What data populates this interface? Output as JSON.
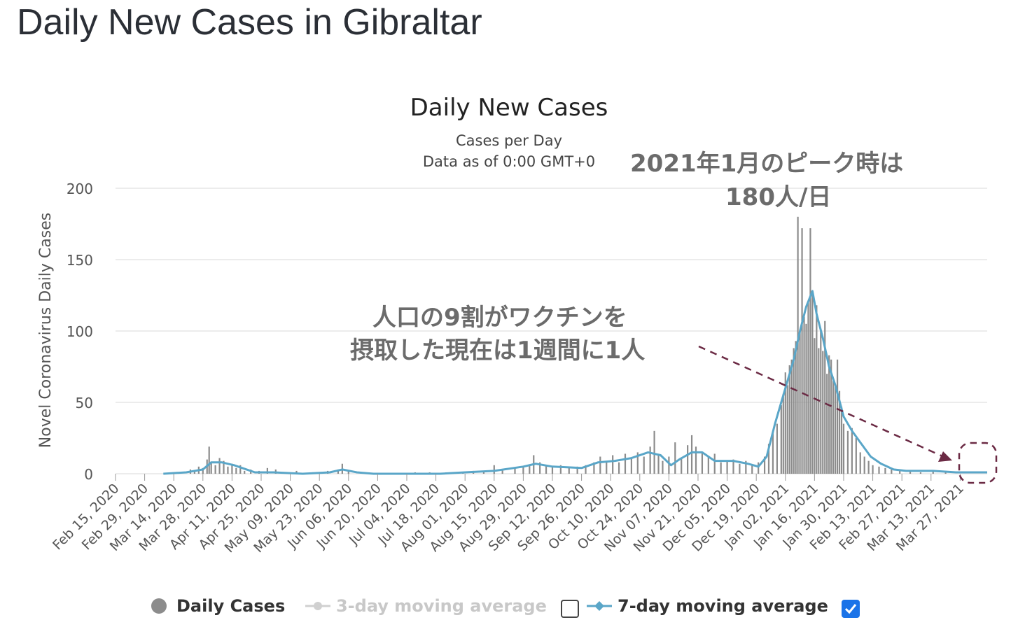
{
  "page_title": "Daily New Cases in Gibraltar",
  "legend": {
    "daily": "Daily Cases",
    "ma3": "3-day moving average",
    "ma7": "7-day moving average"
  },
  "annotations": {
    "peak_line1": "2021年1月のピーク時は",
    "peak_line2": "180人/日",
    "now_line1": "人口の9割がワクチンを",
    "now_line2": "摂取した現在は1週間に1人"
  },
  "colors": {
    "bars": "#8c8c8c",
    "ma7": "#5aa6c8",
    "arrow": "#6b2a44",
    "grid": "#e6e6e6"
  },
  "chart_data": {
    "type": "bar",
    "title": "Daily New Cases",
    "subtitle_line1": "Cases per Day",
    "subtitle_line2": "Data as of 0:00 GMT+0",
    "ylabel": "Novel Coronavirus Daily Cases",
    "ylim": [
      0,
      200
    ],
    "yticks": [
      "0",
      "50",
      "100",
      "150",
      "200"
    ],
    "x_start": "2020-02-15",
    "x_end": "2021-04-09",
    "xtick_labels": [
      "Feb 15, 2020",
      "Feb 29, 2020",
      "Mar 14, 2020",
      "Mar 28, 2020",
      "Apr 11, 2020",
      "Apr 25, 2020",
      "May 09, 2020",
      "May 23, 2020",
      "Jun 06, 2020",
      "Jun 20, 2020",
      "Jul 04, 2020",
      "Jul 18, 2020",
      "Aug 01, 2020",
      "Aug 15, 2020",
      "Aug 29, 2020",
      "Sep 12, 2020",
      "Sep 26, 2020",
      "Oct 10, 2020",
      "Oct 24, 2020",
      "Nov 07, 2020",
      "Nov 21, 2020",
      "Dec 05, 2020",
      "Dec 19, 2020",
      "Jan 02, 2021",
      "Jan 16, 2021",
      "Jan 30, 2021",
      "Feb 13, 2021",
      "Feb 27, 2021",
      "Mar 13, 2021",
      "Mar 27, 2021"
    ],
    "series": [
      {
        "name": "Daily Cases",
        "points": [
          [
            "2020-03-22",
            3
          ],
          [
            "2020-03-24",
            2
          ],
          [
            "2020-03-26",
            5
          ],
          [
            "2020-03-28",
            4
          ],
          [
            "2020-03-30",
            10
          ],
          [
            "2020-03-31",
            19
          ],
          [
            "2020-04-01",
            8
          ],
          [
            "2020-04-03",
            6
          ],
          [
            "2020-04-05",
            11
          ],
          [
            "2020-04-07",
            9
          ],
          [
            "2020-04-09",
            5
          ],
          [
            "2020-04-11",
            7
          ],
          [
            "2020-04-13",
            4
          ],
          [
            "2020-04-15",
            6
          ],
          [
            "2020-04-17",
            2
          ],
          [
            "2020-04-20",
            3
          ],
          [
            "2020-04-24",
            2
          ],
          [
            "2020-04-28",
            4
          ],
          [
            "2020-05-02",
            3
          ],
          [
            "2020-05-06",
            1
          ],
          [
            "2020-05-12",
            2
          ],
          [
            "2020-05-20",
            1
          ],
          [
            "2020-05-27",
            2
          ],
          [
            "2020-06-01",
            3
          ],
          [
            "2020-06-03",
            7
          ],
          [
            "2020-06-06",
            2
          ],
          [
            "2020-06-12",
            1
          ],
          [
            "2020-07-08",
            1
          ],
          [
            "2020-07-15",
            1
          ],
          [
            "2020-07-23",
            1
          ],
          [
            "2020-07-31",
            1
          ],
          [
            "2020-08-05",
            2
          ],
          [
            "2020-08-10",
            2
          ],
          [
            "2020-08-15",
            6
          ],
          [
            "2020-08-19",
            3
          ],
          [
            "2020-08-25",
            4
          ],
          [
            "2020-08-29",
            5
          ],
          [
            "2020-09-01",
            6
          ],
          [
            "2020-09-03",
            13
          ],
          [
            "2020-09-06",
            8
          ],
          [
            "2020-09-09",
            6
          ],
          [
            "2020-09-12",
            5
          ],
          [
            "2020-09-16",
            6
          ],
          [
            "2020-09-20",
            4
          ],
          [
            "2020-09-24",
            5
          ],
          [
            "2020-09-28",
            6
          ],
          [
            "2020-10-02",
            8
          ],
          [
            "2020-10-05",
            12
          ],
          [
            "2020-10-08",
            9
          ],
          [
            "2020-10-11",
            13
          ],
          [
            "2020-10-14",
            8
          ],
          [
            "2020-10-17",
            14
          ],
          [
            "2020-10-20",
            11
          ],
          [
            "2020-10-23",
            15
          ],
          [
            "2020-10-26",
            12
          ],
          [
            "2020-10-29",
            19
          ],
          [
            "2020-10-31",
            30
          ],
          [
            "2020-11-02",
            14
          ],
          [
            "2020-11-04",
            9
          ],
          [
            "2020-11-07",
            12
          ],
          [
            "2020-11-10",
            22
          ],
          [
            "2020-11-13",
            11
          ],
          [
            "2020-11-16",
            20
          ],
          [
            "2020-11-18",
            27
          ],
          [
            "2020-11-20",
            19
          ],
          [
            "2020-11-23",
            15
          ],
          [
            "2020-11-26",
            12
          ],
          [
            "2020-11-29",
            14
          ],
          [
            "2020-12-02",
            8
          ],
          [
            "2020-12-05",
            9
          ],
          [
            "2020-12-08",
            10
          ],
          [
            "2020-12-11",
            7
          ],
          [
            "2020-12-14",
            9
          ],
          [
            "2020-12-17",
            6
          ],
          [
            "2020-12-20",
            8
          ],
          [
            "2020-12-23",
            12
          ],
          [
            "2020-12-25",
            21
          ],
          [
            "2020-12-27",
            29
          ],
          [
            "2020-12-29",
            35
          ],
          [
            "2020-12-31",
            48
          ],
          [
            "2021-01-01",
            56
          ],
          [
            "2021-01-02",
            71
          ],
          [
            "2021-01-03",
            62
          ],
          [
            "2021-01-04",
            76
          ],
          [
            "2021-01-05",
            80
          ],
          [
            "2021-01-06",
            88
          ],
          [
            "2021-01-07",
            93
          ],
          [
            "2021-01-08",
            180
          ],
          [
            "2021-01-09",
            100
          ],
          [
            "2021-01-10",
            172
          ],
          [
            "2021-01-11",
            110
          ],
          [
            "2021-01-12",
            105
          ],
          [
            "2021-01-13",
            120
          ],
          [
            "2021-01-14",
            172
          ],
          [
            "2021-01-15",
            128
          ],
          [
            "2021-01-16",
            95
          ],
          [
            "2021-01-17",
            118
          ],
          [
            "2021-01-18",
            88
          ],
          [
            "2021-01-19",
            100
          ],
          [
            "2021-01-20",
            86
          ],
          [
            "2021-01-21",
            107
          ],
          [
            "2021-01-22",
            70
          ],
          [
            "2021-01-23",
            83
          ],
          [
            "2021-01-24",
            80
          ],
          [
            "2021-01-25",
            65
          ],
          [
            "2021-01-26",
            62
          ],
          [
            "2021-01-27",
            80
          ],
          [
            "2021-01-28",
            58
          ],
          [
            "2021-01-29",
            47
          ],
          [
            "2021-01-30",
            35
          ],
          [
            "2021-02-01",
            30
          ],
          [
            "2021-02-03",
            32
          ],
          [
            "2021-02-05",
            25
          ],
          [
            "2021-02-07",
            15
          ],
          [
            "2021-02-09",
            12
          ],
          [
            "2021-02-11",
            9
          ],
          [
            "2021-02-13",
            6
          ],
          [
            "2021-02-16",
            5
          ],
          [
            "2021-02-19",
            4
          ],
          [
            "2021-02-22",
            3
          ],
          [
            "2021-02-26",
            2
          ],
          [
            "2021-03-03",
            2
          ],
          [
            "2021-03-08",
            1
          ],
          [
            "2021-03-14",
            2
          ],
          [
            "2021-03-20",
            1
          ]
        ]
      },
      {
        "name": "7-day moving average",
        "points": [
          [
            "2020-03-09",
            0
          ],
          [
            "2020-03-20",
            1
          ],
          [
            "2020-03-28",
            3
          ],
          [
            "2020-04-01",
            8
          ],
          [
            "2020-04-06",
            8
          ],
          [
            "2020-04-12",
            6
          ],
          [
            "2020-04-18",
            3
          ],
          [
            "2020-04-22",
            1
          ],
          [
            "2020-05-01",
            1
          ],
          [
            "2020-05-15",
            0
          ],
          [
            "2020-05-28",
            1
          ],
          [
            "2020-06-03",
            3
          ],
          [
            "2020-06-10",
            1
          ],
          [
            "2020-06-18",
            0
          ],
          [
            "2020-07-20",
            0
          ],
          [
            "2020-08-01",
            1
          ],
          [
            "2020-08-15",
            2
          ],
          [
            "2020-08-29",
            5
          ],
          [
            "2020-09-04",
            7
          ],
          [
            "2020-09-12",
            5
          ],
          [
            "2020-09-26",
            4
          ],
          [
            "2020-10-04",
            8
          ],
          [
            "2020-10-12",
            9
          ],
          [
            "2020-10-20",
            11
          ],
          [
            "2020-10-28",
            15
          ],
          [
            "2020-11-03",
            13
          ],
          [
            "2020-11-08",
            6
          ],
          [
            "2020-11-12",
            10
          ],
          [
            "2020-11-18",
            15
          ],
          [
            "2020-11-23",
            15
          ],
          [
            "2020-11-29",
            9
          ],
          [
            "2020-12-08",
            9
          ],
          [
            "2020-12-15",
            7
          ],
          [
            "2020-12-20",
            5
          ],
          [
            "2020-12-24",
            12
          ],
          [
            "2020-12-28",
            35
          ],
          [
            "2021-01-02",
            60
          ],
          [
            "2021-01-06",
            80
          ],
          [
            "2021-01-09",
            100
          ],
          [
            "2021-01-12",
            117
          ],
          [
            "2021-01-15",
            128
          ],
          [
            "2021-01-17",
            112
          ],
          [
            "2021-01-20",
            95
          ],
          [
            "2021-01-23",
            75
          ],
          [
            "2021-01-26",
            62
          ],
          [
            "2021-01-30",
            40
          ],
          [
            "2021-02-03",
            30
          ],
          [
            "2021-02-07",
            22
          ],
          [
            "2021-02-12",
            12
          ],
          [
            "2021-02-17",
            7
          ],
          [
            "2021-02-23",
            3
          ],
          [
            "2021-03-01",
            2
          ],
          [
            "2021-03-14",
            2
          ],
          [
            "2021-03-25",
            1
          ],
          [
            "2021-04-09",
            1
          ]
        ]
      }
    ]
  }
}
